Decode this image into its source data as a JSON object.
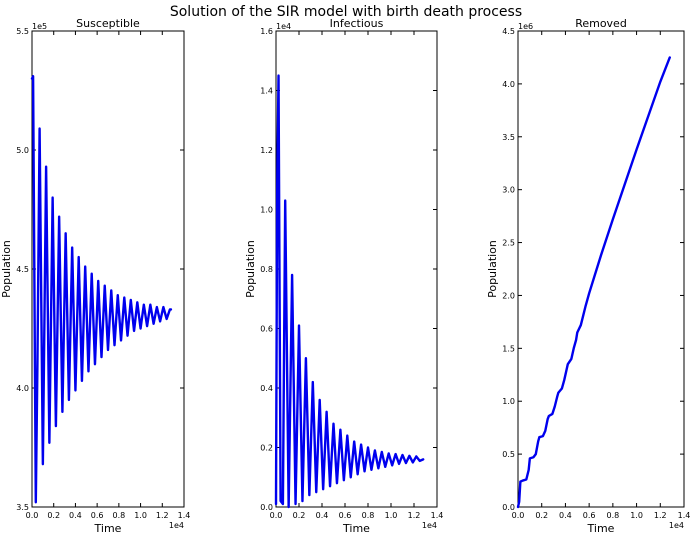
{
  "figure": {
    "suptitle": "Solution of the SIR model with birth death process"
  },
  "chart_data": [
    {
      "type": "line",
      "title": "Susceptible",
      "xlabel": "Time",
      "ylabel": "Population",
      "x_offset_label": "1e4",
      "y_offset_label": "1e5",
      "xlim": [
        0,
        1.4
      ],
      "ylim": [
        3.5,
        5.5
      ],
      "xticks": [
        0.0,
        0.2,
        0.4,
        0.6,
        0.8,
        1.0,
        1.2,
        1.4
      ],
      "xtick_labels": [
        "0.0",
        "0.2",
        "0.4",
        "0.6",
        "0.8",
        "1.0",
        "1.2",
        "1.4"
      ],
      "yticks": [
        3.5,
        4.0,
        4.5,
        5.0,
        5.5
      ],
      "ytick_labels": [
        "3.5",
        "4.0",
        "4.5",
        "5.0",
        "5.5"
      ],
      "line_color": "#0000ee",
      "series": [
        {
          "x": [
            0,
            0.01,
            0.02,
            0.035,
            0.05,
            0.07,
            0.1,
            0.13,
            0.16,
            0.19,
            0.22,
            0.25,
            0.28,
            0.31,
            0.34,
            0.37,
            0.4,
            0.43,
            0.46,
            0.49,
            0.52,
            0.55,
            0.58,
            0.61,
            0.64,
            0.67,
            0.7,
            0.73,
            0.76,
            0.79,
            0.82,
            0.85,
            0.88,
            0.91,
            0.94,
            0.97,
            1.0,
            1.03,
            1.06,
            1.09,
            1.12,
            1.15,
            1.18,
            1.21,
            1.24,
            1.27,
            1.28
          ],
          "y": [
            5.3,
            5.31,
            4.6,
            3.52,
            4.1,
            5.09,
            3.68,
            4.93,
            3.77,
            4.8,
            3.84,
            4.72,
            3.9,
            4.65,
            3.95,
            4.59,
            3.99,
            4.55,
            4.03,
            4.51,
            4.07,
            4.48,
            4.1,
            4.45,
            4.13,
            4.43,
            4.16,
            4.41,
            4.18,
            4.39,
            4.2,
            4.38,
            4.22,
            4.37,
            4.24,
            4.36,
            4.25,
            4.35,
            4.26,
            4.35,
            4.27,
            4.34,
            4.28,
            4.34,
            4.29,
            4.33,
            4.33
          ]
        }
      ]
    },
    {
      "type": "line",
      "title": "Infectious",
      "xlabel": "Time",
      "ylabel": "Population",
      "x_offset_label": "1e4",
      "y_offset_label": "1e4",
      "xlim": [
        0,
        1.4
      ],
      "ylim": [
        0,
        1.6
      ],
      "xticks": [
        0.0,
        0.2,
        0.4,
        0.6,
        0.8,
        1.0,
        1.2,
        1.4
      ],
      "xtick_labels": [
        "0.0",
        "0.2",
        "0.4",
        "0.6",
        "0.8",
        "1.0",
        "1.2",
        "1.4"
      ],
      "yticks": [
        0.0,
        0.2,
        0.4,
        0.6,
        0.8,
        1.0,
        1.2,
        1.4,
        1.6
      ],
      "ytick_labels": [
        "0.0",
        "0.2",
        "0.4",
        "0.6",
        "0.8",
        "1.0",
        "1.2",
        "1.4",
        "1.6"
      ],
      "line_color": "#0000ee",
      "series": [
        {
          "x": [
            0,
            0.01,
            0.022,
            0.04,
            0.06,
            0.08,
            0.11,
            0.14,
            0.17,
            0.2,
            0.23,
            0.26,
            0.29,
            0.32,
            0.35,
            0.38,
            0.41,
            0.44,
            0.47,
            0.5,
            0.53,
            0.56,
            0.59,
            0.62,
            0.65,
            0.68,
            0.71,
            0.74,
            0.77,
            0.8,
            0.83,
            0.86,
            0.89,
            0.92,
            0.95,
            0.98,
            1.01,
            1.04,
            1.07,
            1.1,
            1.13,
            1.16,
            1.19,
            1.22,
            1.25,
            1.28
          ],
          "y": [
            0.01,
            1.06,
            1.45,
            0.02,
            0.01,
            1.03,
            0.0,
            0.78,
            0.01,
            0.61,
            0.02,
            0.5,
            0.04,
            0.42,
            0.05,
            0.36,
            0.06,
            0.32,
            0.07,
            0.28,
            0.08,
            0.26,
            0.09,
            0.24,
            0.1,
            0.22,
            0.11,
            0.21,
            0.12,
            0.2,
            0.125,
            0.19,
            0.13,
            0.185,
            0.135,
            0.18,
            0.14,
            0.178,
            0.145,
            0.175,
            0.148,
            0.172,
            0.15,
            0.17,
            0.155,
            0.16
          ]
        }
      ]
    },
    {
      "type": "line",
      "title": "Removed",
      "xlabel": "Time",
      "ylabel": "Population",
      "x_offset_label": "1e4",
      "y_offset_label": "1e6",
      "xlim": [
        0,
        1.4
      ],
      "ylim": [
        0,
        4.5
      ],
      "xticks": [
        0.0,
        0.2,
        0.4,
        0.6,
        0.8,
        1.0,
        1.2,
        1.4
      ],
      "xtick_labels": [
        "0.0",
        "0.2",
        "0.4",
        "0.6",
        "0.8",
        "1.0",
        "1.2",
        "1.4"
      ],
      "yticks": [
        0.0,
        0.5,
        1.0,
        1.5,
        2.0,
        2.5,
        3.0,
        3.5,
        4.0,
        4.5
      ],
      "ytick_labels": [
        "0.0",
        "0.5",
        "1.0",
        "1.5",
        "2.0",
        "2.5",
        "3.0",
        "3.5",
        "4.0",
        "4.5"
      ],
      "line_color": "#0000ee",
      "series": [
        {
          "x": [
            0,
            0.01,
            0.02,
            0.04,
            0.07,
            0.09,
            0.1,
            0.13,
            0.15,
            0.17,
            0.18,
            0.21,
            0.23,
            0.25,
            0.26,
            0.29,
            0.31,
            0.33,
            0.34,
            0.37,
            0.39,
            0.41,
            0.42,
            0.45,
            0.47,
            0.49,
            0.5,
            0.53,
            0.55,
            0.57,
            0.6,
            0.65,
            0.7,
            0.8,
            0.9,
            1.0,
            1.1,
            1.2,
            1.28
          ],
          "y": [
            0.0,
            0.05,
            0.24,
            0.25,
            0.26,
            0.35,
            0.46,
            0.47,
            0.5,
            0.62,
            0.66,
            0.67,
            0.72,
            0.83,
            0.86,
            0.88,
            0.95,
            1.04,
            1.08,
            1.12,
            1.2,
            1.3,
            1.35,
            1.4,
            1.5,
            1.58,
            1.65,
            1.72,
            1.81,
            1.9,
            2.02,
            2.2,
            2.38,
            2.72,
            3.05,
            3.38,
            3.7,
            4.02,
            4.25
          ]
        }
      ]
    }
  ]
}
